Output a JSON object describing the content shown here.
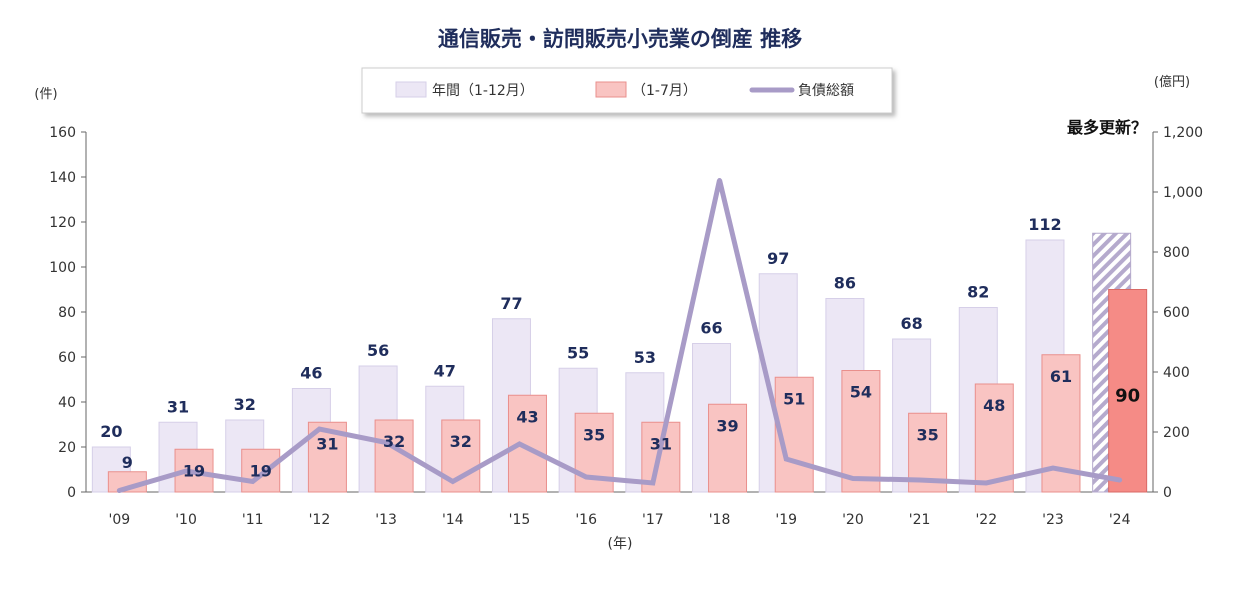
{
  "chart_data": {
    "type": "bar",
    "title": "通信販売・訪問販売小売業の倒産 推移",
    "categories": [
      "'09",
      "'10",
      "'11",
      "'12",
      "'13",
      "'14",
      "'15",
      "'16",
      "'17",
      "'18",
      "'19",
      "'20",
      "'21",
      "'22",
      "'23",
      "'24"
    ],
    "series": [
      {
        "name": "年間（1-12月）",
        "kind": "bar",
        "values": [
          20,
          31,
          32,
          46,
          56,
          47,
          77,
          55,
          53,
          66,
          97,
          86,
          68,
          82,
          112,
          null
        ],
        "color": "#ece7f5",
        "border": "#d6cfe8"
      },
      {
        "name": "（1-7月）",
        "kind": "bar",
        "values": [
          9,
          19,
          19,
          31,
          32,
          32,
          43,
          35,
          31,
          39,
          51,
          54,
          35,
          48,
          61,
          90
        ],
        "color": "#f9c4c2",
        "border": "#e98f8c"
      },
      {
        "name": "負債総額",
        "kind": "line",
        "axis": "right",
        "values": [
          5,
          70,
          35,
          210,
          165,
          35,
          160,
          50,
          30,
          1040,
          110,
          45,
          40,
          30,
          80,
          40
        ],
        "color": "#a89bc7"
      }
    ],
    "highlight": {
      "index": 15,
      "color": "#f58b86",
      "border": "#d96a66",
      "label": "90"
    },
    "hatched_bar": {
      "index": 15,
      "value": 115,
      "color": "#b5aacd"
    },
    "annotation": "最多更新？",
    "y_left": {
      "unit": "(件)",
      "ylim": [
        0,
        160
      ],
      "ticks": [
        "0",
        "20",
        "40",
        "60",
        "80",
        "100",
        "120",
        "140",
        "160"
      ]
    },
    "y_right": {
      "unit": "(億円)",
      "ylim": [
        0,
        1200
      ],
      "ticks": [
        "0",
        "200",
        "400",
        "600",
        "800",
        "1,000",
        "1,200"
      ]
    },
    "xlabel": "(年)",
    "grid": false,
    "legend_position": "top-center"
  }
}
